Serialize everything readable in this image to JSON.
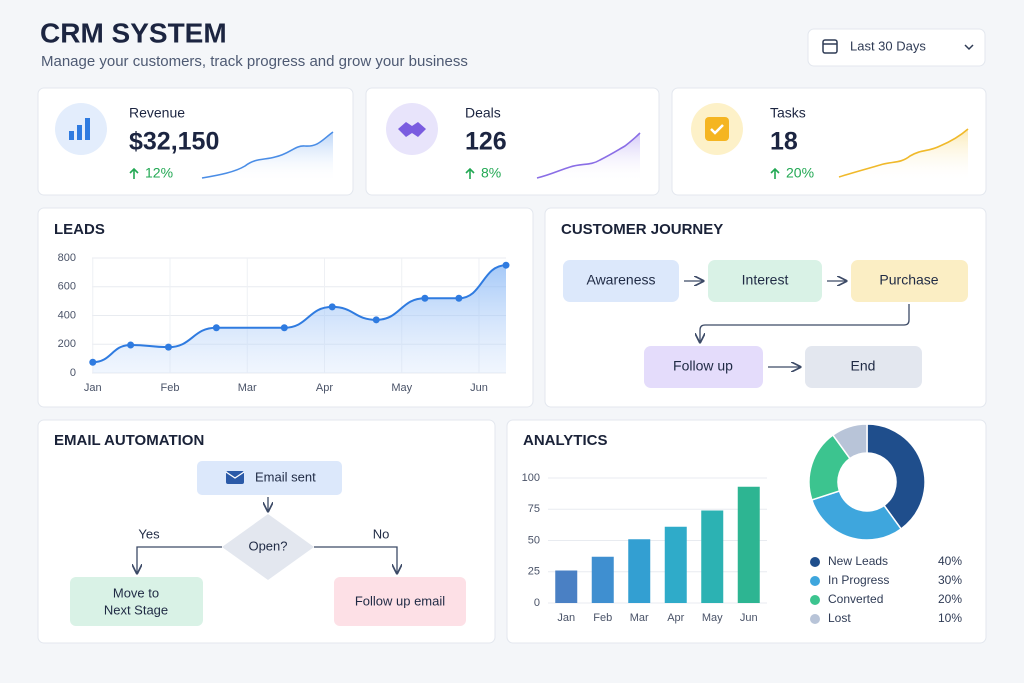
{
  "header": {
    "title": "CRM SYSTEM",
    "subtitle": "Manage your customers, track progress and grow your business",
    "date_filter": "Last 30 Days"
  },
  "kpis": [
    {
      "label": "Revenue",
      "value": "$32,150",
      "change": "12%"
    },
    {
      "label": "Deals",
      "value": "126",
      "change": "8%"
    },
    {
      "label": "Tasks",
      "value": "18",
      "change": "20%"
    }
  ],
  "journey": {
    "title": "CUSTOMER JOURNEY",
    "nodes": [
      "Awareness",
      "Interest",
      "Purchase",
      "Follow up",
      "End"
    ]
  },
  "email": {
    "title": "EMAIL AUTOMATION",
    "start": "Email sent",
    "decision": "Open?",
    "yes": "Yes",
    "no": "No",
    "yes_target": [
      "Move to",
      "Next Stage"
    ],
    "no_target": "Follow up email"
  },
  "chart_data": [
    {
      "type": "line",
      "title": "LEADS",
      "x": [
        0,
        0.49,
        0.98,
        1.6,
        2.48,
        3.1,
        3.67,
        4.3,
        4.74,
        5.35
      ],
      "values": [
        75,
        195,
        180,
        315,
        315,
        460,
        370,
        520,
        520,
        750
      ],
      "color": "#2f7be0",
      "xlim": [
        -0.01,
        5.35
      ],
      "ylim": [
        0,
        800
      ],
      "yticks": [
        0,
        200,
        400,
        600,
        800
      ],
      "xticks": [
        {
          "value": 0,
          "label": "Jan"
        },
        {
          "value": 1,
          "label": "Feb"
        },
        {
          "value": 2,
          "label": "Mar"
        },
        {
          "value": 3,
          "label": "Apr"
        },
        {
          "value": 4,
          "label": "May"
        },
        {
          "value": 5,
          "label": "Jun"
        }
      ],
      "grid": true
    },
    {
      "type": "bar",
      "title": "ANALYTICS",
      "categories": [
        "Jan",
        "Feb",
        "Mar",
        "Apr",
        "May",
        "Jun"
      ],
      "values": [
        26,
        37,
        51,
        61,
        74,
        93
      ],
      "colors": [
        "#4a80c4",
        "#3f8fd0",
        "#339fd2",
        "#2fabc9",
        "#2cb2b3",
        "#2db592"
      ],
      "ylim": [
        0,
        100
      ],
      "yticks": [
        0,
        25,
        50,
        75,
        100
      ],
      "grid": true
    },
    {
      "type": "pie",
      "categories": [
        "New Leads",
        "In Progress",
        "Converted",
        "Lost"
      ],
      "values": [
        40,
        30,
        20,
        10
      ],
      "value_labels": [
        "40%",
        "30%",
        "20%",
        "10%"
      ],
      "colors": [
        "#1f4e8c",
        "#3ea6dd",
        "#3cc48f",
        "#b8c4d8"
      ]
    }
  ]
}
